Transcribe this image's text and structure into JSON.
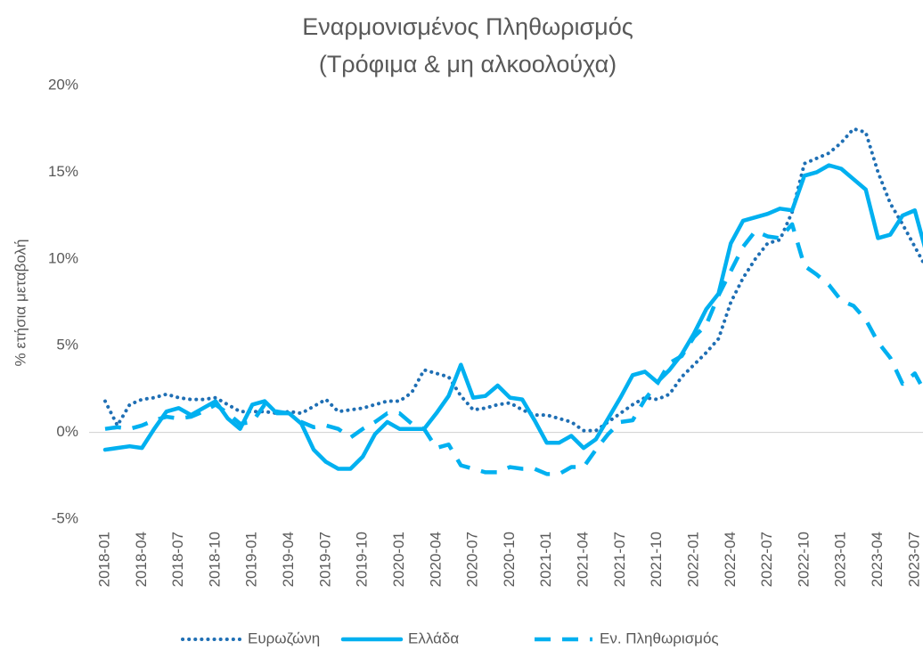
{
  "chart_data": {
    "type": "line",
    "title": "Εναρμονισμένος Πληθωρισμός",
    "subtitle": "(Τρόφιμα & μη αλκοολούχα)",
    "y_label": "% ετήσια μεταβολή",
    "categories": [
      "2018-01",
      null,
      null,
      "2018-04",
      null,
      null,
      "2018-07",
      null,
      null,
      "2018-10",
      null,
      null,
      "2019-01",
      null,
      null,
      "2019-04",
      null,
      null,
      "2019-07",
      null,
      null,
      "2019-10",
      null,
      null,
      "2020-01",
      null,
      null,
      "2020-04",
      null,
      null,
      "2020-07",
      null,
      null,
      "2020-10",
      null,
      null,
      "2021-01",
      null,
      null,
      "2021-04",
      null,
      null,
      "2021-07",
      null,
      null,
      "2021-10",
      null,
      null,
      "2022-01",
      null,
      null,
      "2022-04",
      null,
      null,
      "2022-07",
      null,
      null,
      "2022-10",
      null,
      null,
      "2023-01",
      null,
      null,
      "2023-04",
      null,
      null,
      "2023-07",
      null
    ],
    "series": [
      {
        "name": "Ευρωζώνη",
        "color": "#1f6fb4",
        "style": "dotted",
        "values": [
          1.8,
          0.4,
          1.6,
          1.9,
          2.0,
          2.2,
          2.0,
          1.9,
          1.9,
          2.0,
          1.6,
          1.2,
          1.2,
          1.2,
          1.1,
          1.2,
          1.1,
          1.5,
          1.9,
          1.2,
          1.3,
          1.4,
          1.6,
          1.8,
          1.8,
          2.3,
          3.6,
          3.4,
          3.2,
          2.1,
          1.3,
          1.4,
          1.6,
          1.7,
          1.3,
          1.0,
          1.0,
          0.8,
          0.6,
          0.1,
          0.1,
          0.6,
          1.1,
          1.6,
          2.0,
          1.9,
          2.2,
          3.2,
          3.9,
          4.6,
          5.4,
          7.5,
          8.9,
          10.0,
          10.9,
          11.1,
          12.7,
          15.5,
          15.8,
          16.1,
          16.7,
          17.5,
          17.3,
          15.0,
          13.2,
          12.0,
          10.7,
          9.4
        ]
      },
      {
        "name": "Ελλάδα",
        "color": "#00b0f0",
        "style": "solid",
        "values": [
          -1.0,
          -0.9,
          -0.8,
          -0.9,
          0.2,
          1.2,
          1.4,
          1.0,
          1.4,
          1.8,
          0.8,
          0.2,
          1.6,
          1.8,
          1.1,
          1.1,
          0.5,
          -1.0,
          -1.7,
          -2.1,
          -2.1,
          -1.4,
          -0.1,
          0.6,
          0.2,
          0.2,
          0.2,
          1.1,
          2.1,
          3.9,
          2.0,
          2.1,
          2.7,
          2.0,
          1.9,
          0.7,
          -0.6,
          -0.6,
          -0.2,
          -0.9,
          -0.4,
          0.8,
          2.0,
          3.3,
          3.5,
          2.9,
          3.6,
          4.5,
          5.7,
          7.1,
          8.0,
          10.9,
          12.2,
          12.4,
          12.6,
          12.9,
          12.8,
          14.8,
          15.0,
          15.4,
          15.2,
          14.6,
          14.0,
          11.2,
          11.4,
          12.5,
          12.8,
          10.2
        ]
      },
      {
        "name": "Εν. Πληθωρισμός",
        "color": "#00b0f0",
        "style": "dashed",
        "values": [
          0.2,
          0.3,
          0.2,
          0.4,
          0.7,
          0.9,
          0.8,
          0.9,
          1.2,
          1.6,
          1.1,
          0.5,
          0.6,
          1.6,
          1.2,
          1.1,
          0.6,
          0.3,
          0.4,
          0.2,
          -0.3,
          0.2,
          0.6,
          1.1,
          1.1,
          0.5,
          0.2,
          -0.9,
          -0.7,
          -1.9,
          -2.1,
          -2.3,
          -2.3,
          -2.0,
          -2.1,
          -2.1,
          -2.4,
          -2.4,
          -2.0,
          -2.0,
          -1.0,
          -0.1,
          0.6,
          0.7,
          1.9,
          2.8,
          4.0,
          4.4,
          5.5,
          6.2,
          7.9,
          9.3,
          10.7,
          11.6,
          11.3,
          11.2,
          12.0,
          9.6,
          9.1,
          8.5,
          7.6,
          7.3,
          6.5,
          5.2,
          4.3,
          2.8,
          3.4,
          2.1
        ]
      }
    ],
    "ylim": [
      -5,
      20
    ],
    "yticks": [
      {
        "value": -5,
        "label": "-5%"
      },
      {
        "value": 0,
        "label": "0%"
      },
      {
        "value": 5,
        "label": "5%"
      },
      {
        "value": 10,
        "label": "10%"
      },
      {
        "value": 15,
        "label": "15%"
      },
      {
        "value": 20,
        "label": "20%"
      }
    ],
    "grid": false,
    "legend": "bottom"
  }
}
